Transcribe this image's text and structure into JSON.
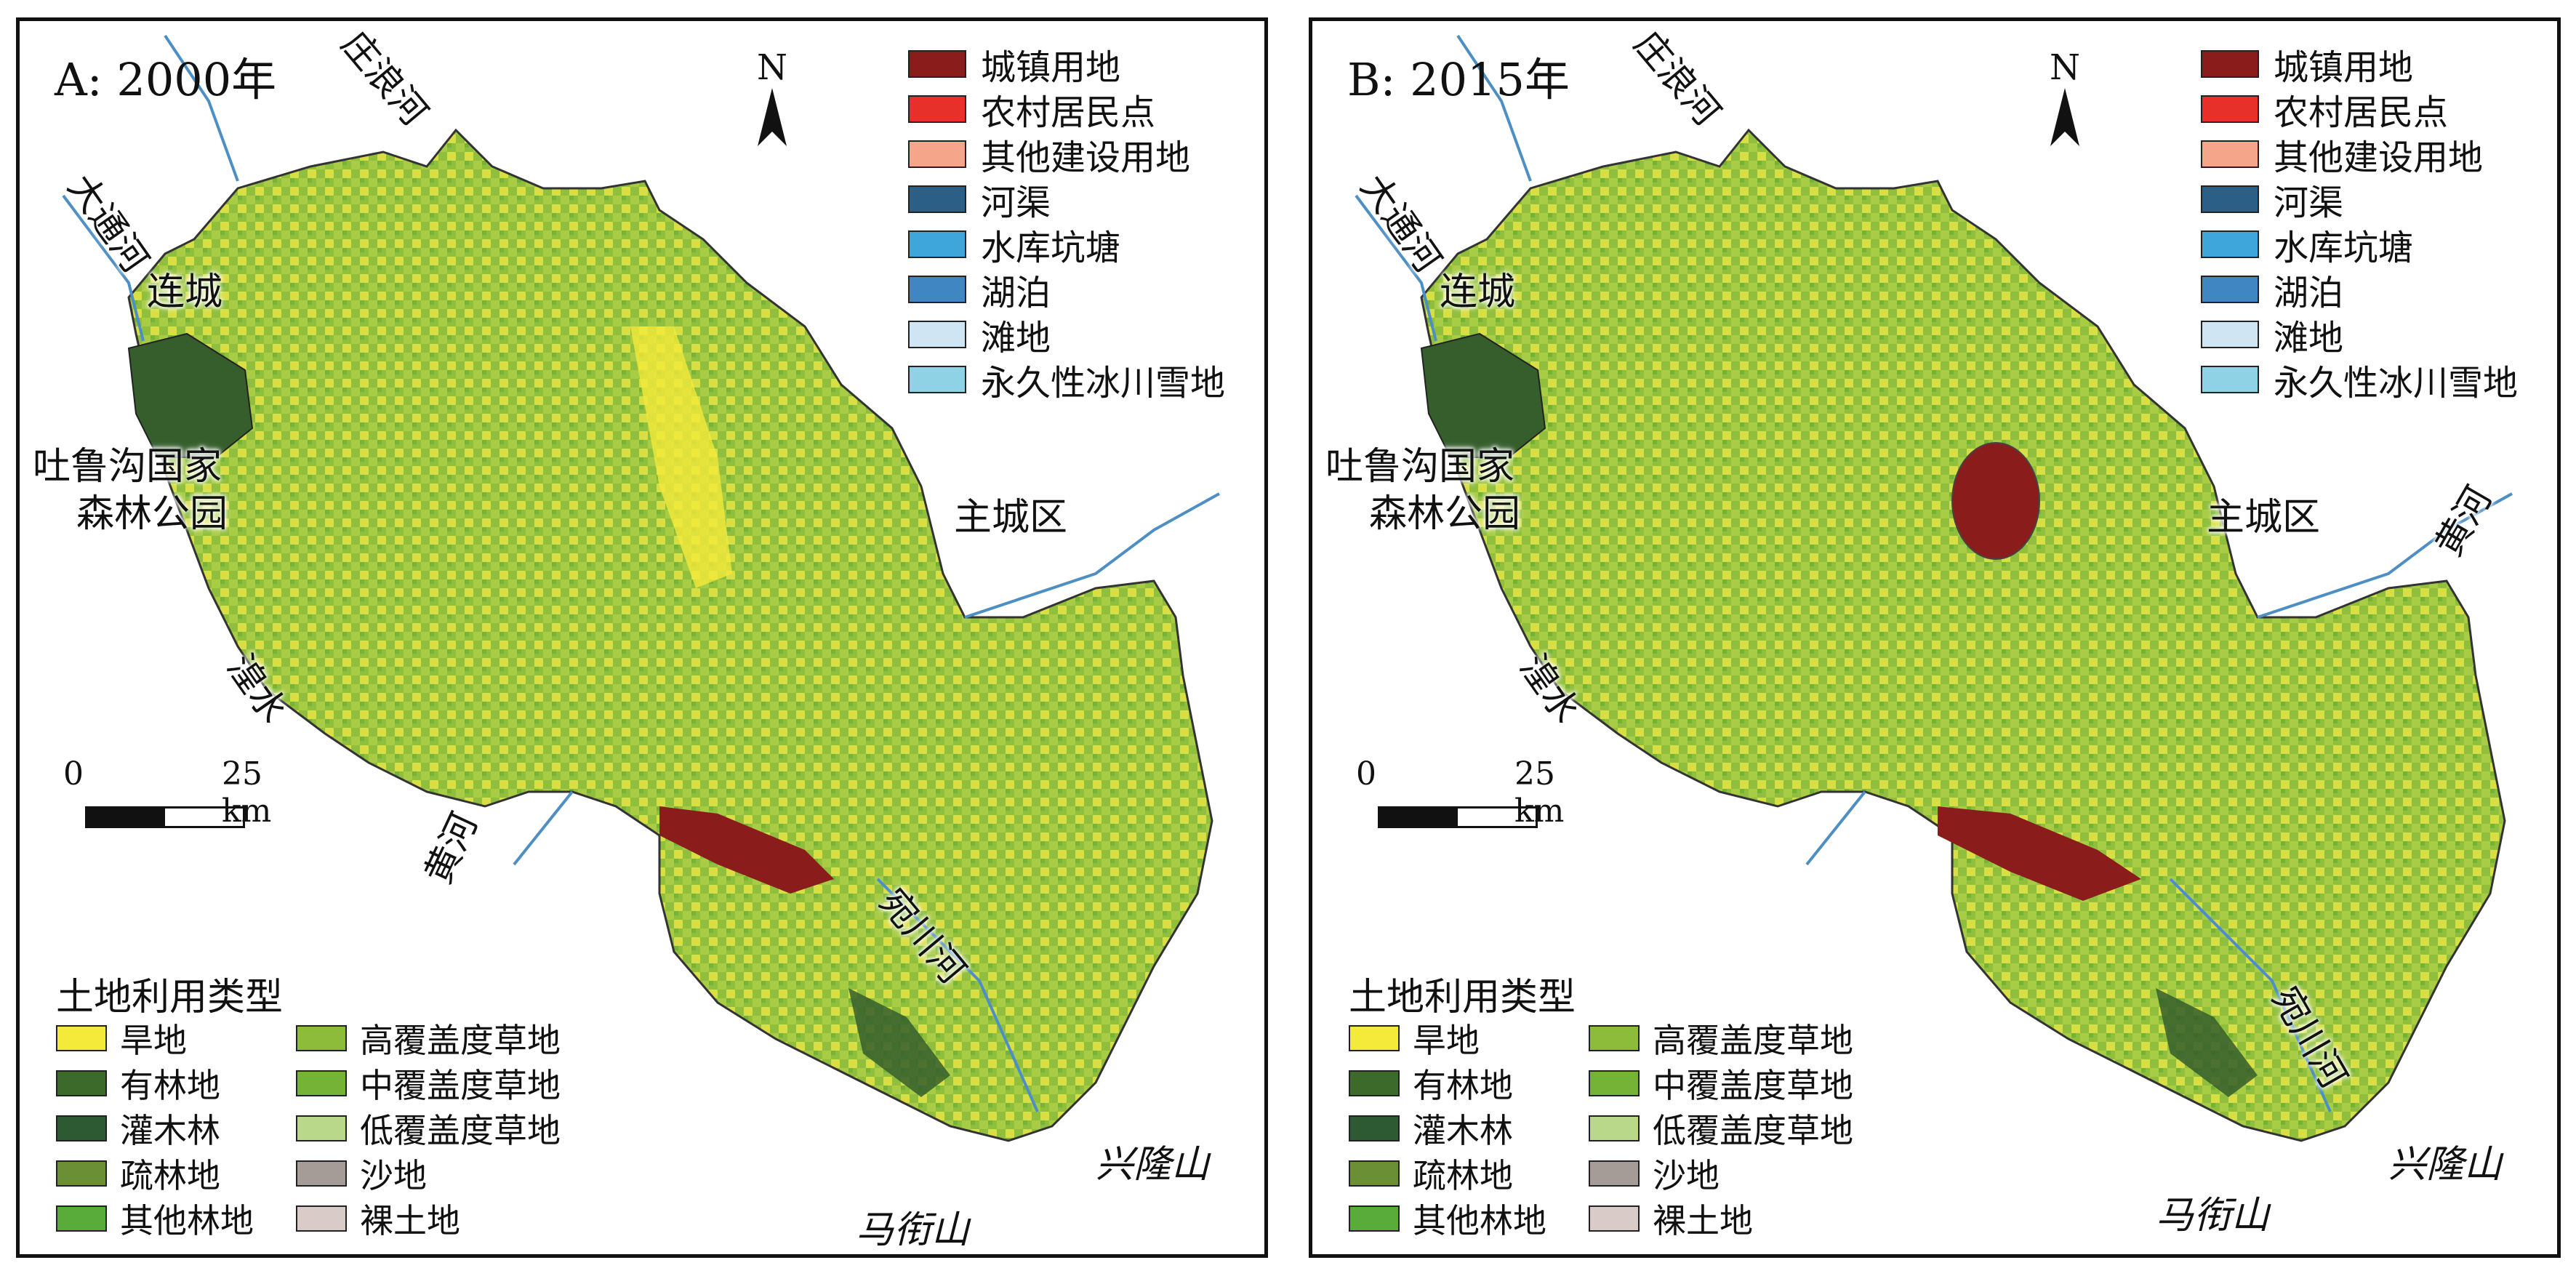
{
  "panels": [
    {
      "title": "A: 2000年",
      "places": {
        "zhuanglang": "庄浪河",
        "datong": "大通河",
        "liancheng": "连城",
        "park": [
          "吐鲁沟国家",
          "森林公园"
        ],
        "main_city": "主城区",
        "huangshui": "湟水",
        "yellow_river": "黄河",
        "wanchuan": "宛川河",
        "xinglong": "兴隆山",
        "majie": "马衔山"
      }
    },
    {
      "title": "B: 2015年",
      "places": {
        "zhuanglang": "庄浪河",
        "datong": "大通河",
        "liancheng": "连城",
        "park": [
          "吐鲁沟国家",
          "森林公园"
        ],
        "main_city": "主城区",
        "huangshui": "湟水",
        "yellow_river": "黄河",
        "wanchuan": "宛川河",
        "xinglong": "兴隆山",
        "majie": "马衔山"
      }
    }
  ],
  "north_label": "N",
  "scale": {
    "zero": "0",
    "distance": "25 km"
  },
  "legend_top": [
    {
      "label": "城镇用地",
      "color": "#8b1c1c"
    },
    {
      "label": "农村居民点",
      "color": "#e8302a"
    },
    {
      "label": "其他建设用地",
      "color": "#f4a58a"
    },
    {
      "label": "河渠",
      "color": "#2b5f86"
    },
    {
      "label": "水库坑塘",
      "color": "#3fa6dc"
    },
    {
      "label": "湖泊",
      "color": "#3f86c2"
    },
    {
      "label": "滩地",
      "color": "#cfe5f4"
    },
    {
      "label": "永久性冰川雪地",
      "color": "#8fd2e6"
    }
  ],
  "legend_bottom": {
    "title": "土地利用类型",
    "items": [
      {
        "label": "旱地",
        "color": "#f4ea3a"
      },
      {
        "label": "高覆盖度草地",
        "color": "#8dbc3a"
      },
      {
        "label": "有林地",
        "color": "#3c6a2a"
      },
      {
        "label": "中覆盖度草地",
        "color": "#74b335"
      },
      {
        "label": "灌木林",
        "color": "#2d5a32"
      },
      {
        "label": "低覆盖度草地",
        "color": "#b9d88a"
      },
      {
        "label": "疏林地",
        "color": "#6b8f34"
      },
      {
        "label": "沙地",
        "color": "#a59c98"
      },
      {
        "label": "其他林地",
        "color": "#5aac3a"
      },
      {
        "label": "裸土地",
        "color": "#d9cbc8"
      }
    ]
  }
}
